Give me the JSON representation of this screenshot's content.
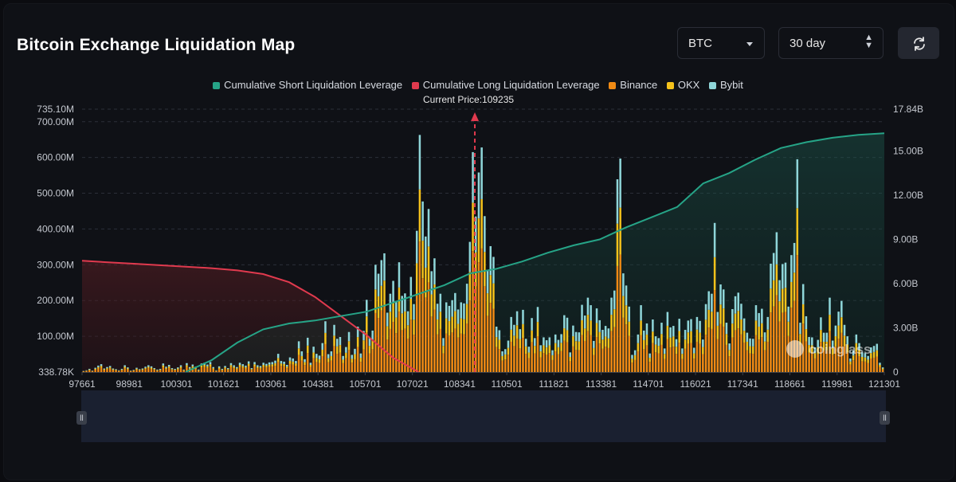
{
  "title": "Bitcoin Exchange Liquidation Map",
  "controls": {
    "coin": "BTC",
    "range": "30 day",
    "refresh_icon": "refresh-icon"
  },
  "legend": [
    {
      "label": "Cumulative Short Liquidation Leverage",
      "color": "#26a487"
    },
    {
      "label": "Cumulative Long Liquidation Leverage",
      "color": "#e03a4e"
    },
    {
      "label": "Binance",
      "color": "#f08a14"
    },
    {
      "label": "OKX",
      "color": "#f5c21b"
    },
    {
      "label": "Bybit",
      "color": "#8fd6d9"
    }
  ],
  "current_price_label": "Current Price:109235",
  "watermark": "coinglass",
  "chart_data": {
    "type": "bar",
    "title": "Bitcoin Exchange Liquidation Map",
    "current_price": 109235,
    "x_tick_labels": [
      "97661",
      "98981",
      "100301",
      "101621",
      "103061",
      "104381",
      "105701",
      "107021",
      "108341",
      "110501",
      "111821",
      "113381",
      "114701",
      "116021",
      "117341",
      "118661",
      "119981",
      "121301"
    ],
    "x_range": [
      97661,
      121301
    ],
    "left_axis_ticks": [
      "338.78K",
      "100.00M",
      "200.00M",
      "300.00M",
      "400.00M",
      "500.00M",
      "600.00M",
      "700.00M",
      "735.10M"
    ],
    "left_axis_values": [
      0,
      100,
      200,
      300,
      400,
      500,
      600,
      700,
      735.1
    ],
    "left_axis_unit": "M",
    "right_axis_ticks": [
      "0",
      "3.00B",
      "6.00B",
      "9.00B",
      "12.00B",
      "15.00B",
      "17.84B"
    ],
    "right_axis_values": [
      0,
      3,
      6,
      9,
      12,
      15,
      17.84
    ],
    "right_axis_unit": "B",
    "bar_totals": [
      3,
      5,
      9,
      4,
      12,
      18,
      22,
      10,
      14,
      17,
      10,
      8,
      5,
      9,
      19,
      13,
      4,
      6,
      12,
      8,
      10,
      15,
      19,
      16,
      11,
      7,
      9,
      24,
      15,
      20,
      11,
      9,
      13,
      19,
      7,
      25,
      14,
      21,
      15,
      7,
      24,
      26,
      21,
      28,
      14,
      5,
      16,
      9,
      17,
      11,
      25,
      19,
      14,
      26,
      22,
      18,
      30,
      11,
      28,
      19,
      17,
      26,
      23,
      27,
      28,
      32,
      51,
      31,
      29,
      20,
      41,
      38,
      31,
      86,
      58,
      36,
      96,
      26,
      71,
      51,
      46,
      81,
      142,
      50,
      58,
      132,
      93,
      98,
      45,
      70,
      112,
      48,
      65,
      127,
      52,
      115,
      202,
      95,
      116,
      300,
      275,
      313,
      332,
      166,
      219,
      255,
      198,
      307,
      213,
      220,
      170,
      266,
      190,
      395,
      663,
      477,
      379,
      456,
      282,
      318,
      191,
      219,
      95,
      195,
      185,
      201,
      221,
      175,
      195,
      192,
      247,
      364,
      615,
      435,
      558,
      628,
      436,
      286,
      352,
      322,
      127,
      117,
      58,
      64,
      88,
      154,
      132,
      170,
      120,
      174,
      93,
      71,
      151,
      95,
      182,
      75,
      97,
      89,
      97,
      61,
      105,
      90,
      106,
      159,
      152,
      55,
      130,
      112,
      111,
      188,
      158,
      208,
      187,
      87,
      178,
      145,
      118,
      129,
      122,
      208,
      228,
      539,
      597,
      276,
      242,
      183,
      48,
      61,
      105,
      187,
      116,
      136,
      52,
      147,
      100,
      95,
      138,
      66,
      168,
      125,
      129,
      92,
      149,
      66,
      118,
      144,
      148,
      68,
      154,
      143,
      91,
      190,
      226,
      219,
      417,
      168,
      245,
      231,
      138,
      80,
      176,
      212,
      222,
      191,
      150,
      110,
      94,
      93,
      187,
      165,
      177,
      111,
      154,
      303,
      333,
      391,
      257,
      302,
      306,
      183,
      327,
      361,
      595,
      138,
      246,
      156,
      98,
      97,
      69,
      90,
      153,
      110,
      110,
      208,
      88,
      130,
      169,
      199,
      132,
      100,
      38,
      60,
      105,
      81,
      55,
      53,
      45,
      69,
      73,
      79,
      26,
      13
    ],
    "cumulative_short_B": [
      0,
      0,
      0,
      0,
      0,
      0.8,
      2.0,
      2.9,
      3.3,
      3.5,
      3.8,
      4.1,
      4.7,
      5.3,
      5.9,
      6.7,
      7.0,
      7.5,
      8.1,
      8.6,
      9.0,
      9.8,
      10.5,
      11.2,
      12.8,
      13.5,
      14.4,
      15.2,
      15.6,
      15.9,
      16.1,
      16.2
    ],
    "cumulative_long_B": [
      7.55,
      7.45,
      7.35,
      7.25,
      7.15,
      7.05,
      6.9,
      6.65,
      6.1,
      5.1,
      3.8,
      2.5,
      1.0,
      0,
      0,
      0,
      0,
      0,
      0,
      0,
      0,
      0,
      0,
      0,
      0,
      0,
      0,
      0,
      0,
      0,
      0,
      0
    ]
  }
}
